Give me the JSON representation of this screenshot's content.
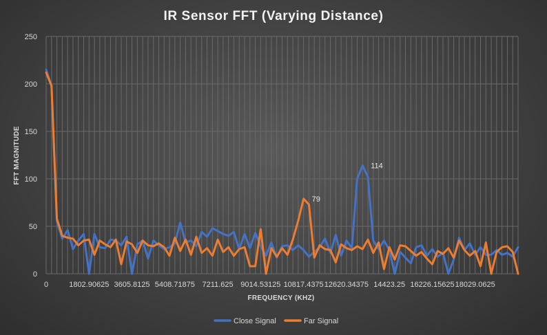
{
  "chart_data": {
    "type": "line",
    "title": "IR Sensor  FFT (Varying  Distance)",
    "xlabel": "FREQUENCY (KHZ)",
    "ylabel": "FFT MAGNITUDE",
    "ylim": [
      0,
      250
    ],
    "yticks": [
      0,
      50,
      100,
      150,
      200,
      250
    ],
    "x_tick_labels": [
      {
        "index": 0,
        "label": "0"
      },
      {
        "index": 8,
        "label": "1802.90625"
      },
      {
        "index": 16,
        "label": "3605.8125"
      },
      {
        "index": 24,
        "label": "5408.71875"
      },
      {
        "index": 32,
        "label": "7211.625"
      },
      {
        "index": 40,
        "label": "9014.53125"
      },
      {
        "index": 48,
        "label": "10817.4375"
      },
      {
        "index": 56,
        "label": "12620.34375"
      },
      {
        "index": 64,
        "label": "14423.25"
      },
      {
        "index": 72,
        "label": "16226.15625"
      },
      {
        "index": 80,
        "label": "18029.0625"
      }
    ],
    "x_step": 225.36328125,
    "n_points": 89,
    "grid": "vertical and horizontal",
    "legend_position": "bottom",
    "series": [
      {
        "name": "Close Signal",
        "color": "#4472C4",
        "values": [
          215,
          198,
          55,
          37,
          46,
          26,
          35,
          42,
          0,
          42,
          28,
          27,
          36,
          35,
          30,
          39,
          0,
          31,
          35,
          16,
          35,
          30,
          26,
          28,
          32,
          54,
          33,
          35,
          29,
          44,
          39,
          48,
          45,
          42,
          40,
          44,
          26,
          42,
          27,
          43,
          29,
          19,
          33,
          17,
          29,
          30,
          25,
          30,
          25,
          18,
          23,
          28,
          37,
          22,
          41,
          19,
          35,
          27,
          100,
          114,
          102,
          35,
          26,
          35,
          25,
          0,
          23,
          17,
          11,
          28,
          30,
          19,
          26,
          18,
          22,
          0,
          15,
          38,
          25,
          32,
          20,
          28,
          20,
          20,
          25,
          20,
          22,
          18,
          28
        ],
        "peak_label": {
          "index": 59,
          "text": "114"
        }
      },
      {
        "name": "Far Signal",
        "color": "#ED7D31",
        "values": [
          212,
          198,
          58,
          40,
          38,
          37,
          30,
          35,
          36,
          20,
          35,
          31,
          28,
          36,
          10,
          34,
          31,
          22,
          35,
          30,
          29,
          32,
          28,
          19,
          38,
          24,
          36,
          20,
          39,
          22,
          27,
          19,
          36,
          23,
          28,
          19,
          26,
          28,
          8,
          8,
          47,
          0,
          27,
          18,
          27,
          20,
          36,
          56,
          79,
          73,
          17,
          30,
          26,
          25,
          12,
          31,
          27,
          25,
          29,
          26,
          36,
          22,
          33,
          5,
          28,
          15,
          30,
          29,
          24,
          19,
          23,
          16,
          10,
          24,
          21,
          27,
          17,
          35,
          25,
          19,
          24,
          8,
          33,
          0,
          23,
          28,
          29,
          23,
          0
        ],
        "peak_label": {
          "index": 48,
          "text": "79"
        }
      }
    ]
  }
}
